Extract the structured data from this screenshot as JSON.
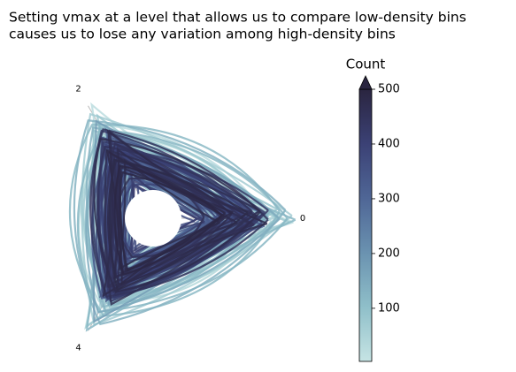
{
  "chart_data": {
    "type": "polar-density",
    "title": [
      "Setting vmax at a level that allows us to compare low-density bins",
      "causes us to lose any variation among high-density bins"
    ],
    "xlim": [
      0,
      6
    ],
    "xticks": [
      0,
      2,
      4
    ],
    "colorbar": {
      "label": "Count",
      "clim": [
        3,
        500
      ],
      "ticks": [
        100,
        200,
        300,
        400,
        500
      ],
      "extend": "max",
      "colors": [
        "#c6e4e4",
        "#8fbfc9",
        "#6a92b0",
        "#4f6696",
        "#3b4175",
        "#2a2540"
      ]
    }
  }
}
